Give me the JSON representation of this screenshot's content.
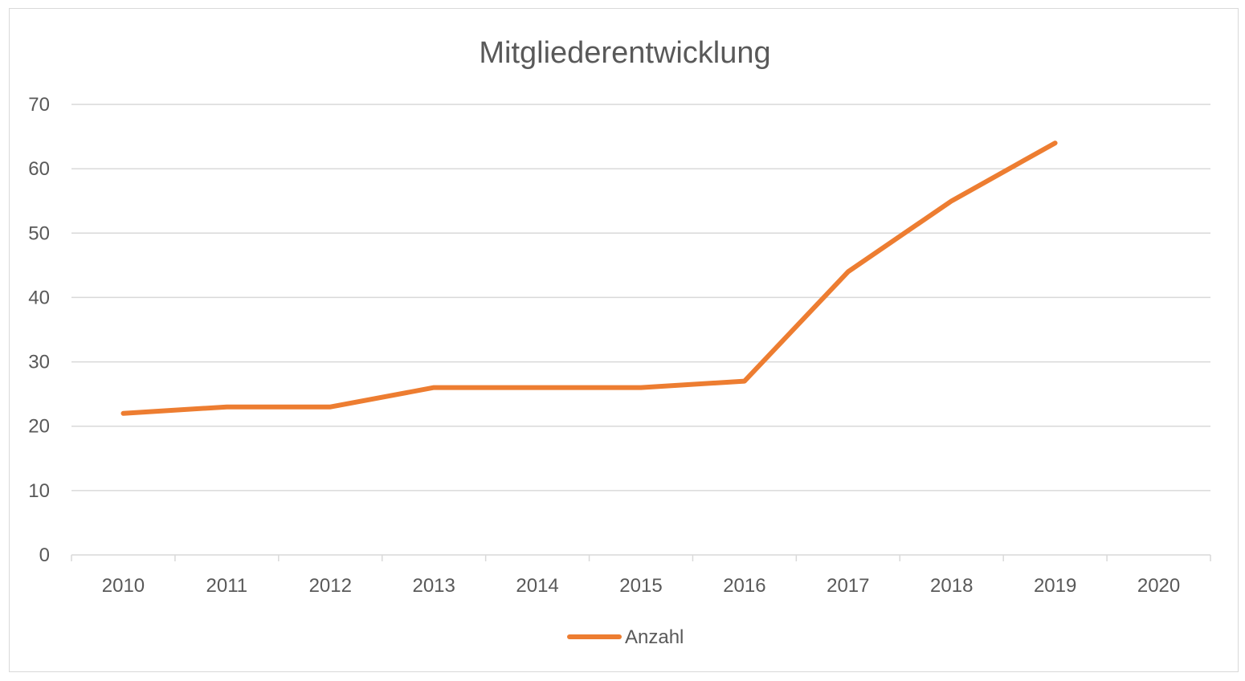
{
  "chart_data": {
    "type": "line",
    "title": "Mitgliederentwicklung",
    "xlabel": "",
    "ylabel": "",
    "categories": [
      "2010",
      "2011",
      "2012",
      "2013",
      "2014",
      "2015",
      "2016",
      "2017",
      "2018",
      "2019",
      "2020"
    ],
    "series": [
      {
        "name": "Anzahl",
        "values": [
          22,
          23,
          23,
          26,
          26,
          26,
          27,
          44,
          55,
          64,
          null
        ]
      }
    ],
    "ylim": [
      0,
      70
    ],
    "yticks": [
      0,
      10,
      20,
      30,
      40,
      50,
      60,
      70
    ],
    "grid": true,
    "legend": "bottom",
    "colors": {
      "series": "#ed7d31",
      "grid": "#d9d9d9",
      "text": "#595959",
      "axis": "#d9d9d9"
    }
  }
}
